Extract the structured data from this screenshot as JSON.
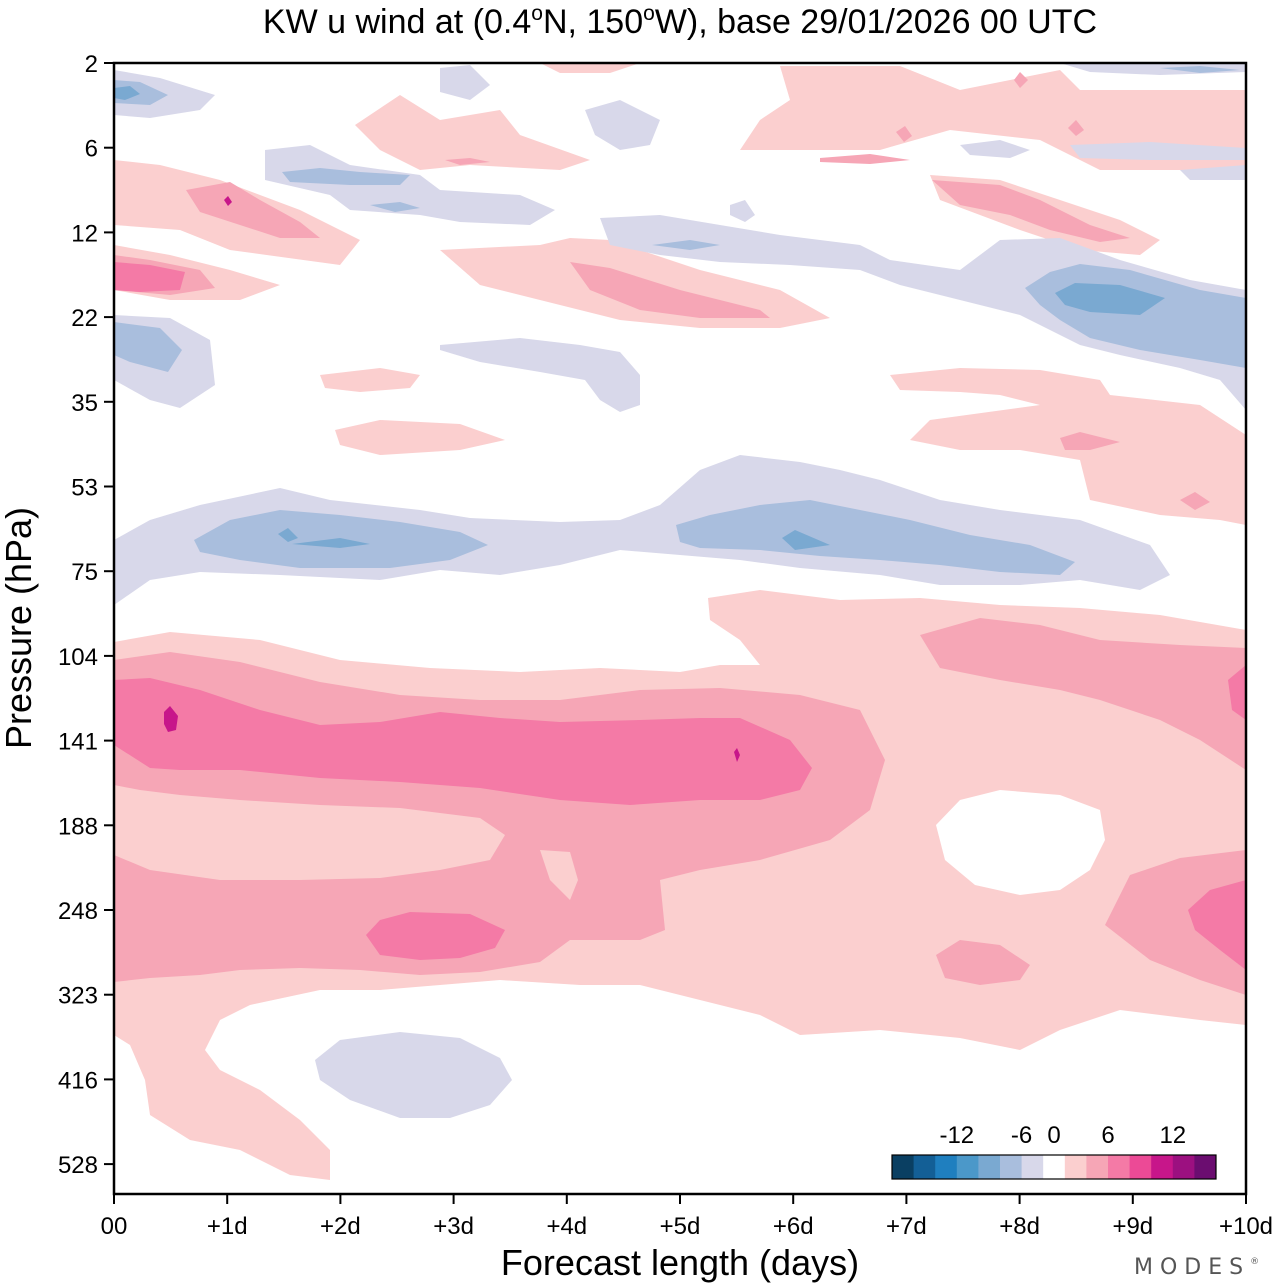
{
  "chart_data": {
    "type": "contour",
    "title_parts": {
      "pre": "KW u wind at (0.4",
      "deg1": "o",
      "mid": "N, 150",
      "deg2": "o",
      "post": "W),  base 29/01/2026  00 UTC"
    },
    "xlabel": "Forecast length (days)",
    "ylabel": "Pressure (hPa)",
    "x_ticks": [
      "00",
      "+1d",
      "+2d",
      "+3d",
      "+4d",
      "+5d",
      "+6d",
      "+7d",
      "+8d",
      "+9d",
      "+10d"
    ],
    "y_ticks": [
      "2",
      "6",
      "12",
      "22",
      "35",
      "53",
      "75",
      "104",
      "141",
      "188",
      "248",
      "323",
      "416",
      "528"
    ],
    "xlim_days": [
      0,
      10
    ],
    "colorbar": {
      "tick_labels": [
        "-12",
        "-6",
        "0",
        "6",
        "12"
      ],
      "tick_bin_positions": [
        3,
        6,
        8,
        10,
        13
      ],
      "levels_ms": [
        -16,
        -14,
        -12,
        -10,
        -8,
        -6,
        -4,
        -2,
        2,
        4,
        6,
        8,
        10,
        12,
        14,
        16
      ],
      "colors": [
        "#0a3f62",
        "#135f96",
        "#1f7fbf",
        "#4b98c9",
        "#7aa9d1",
        "#a9bedd",
        "#d8d8ea",
        "#ffffff",
        "#fbcfcf",
        "#f6a6b6",
        "#f47aa6",
        "#ec4a96",
        "#c7168a",
        "#9c1080",
        "#6b0d70"
      ]
    },
    "features": [
      {
        "name": "upper-neg-1",
        "day": [
          0.0,
          0.8
        ],
        "p": [
          3,
          4
        ],
        "u": -4
      },
      {
        "name": "upper-pos-1",
        "day": [
          0.0,
          1.8
        ],
        "p": [
          8,
          12
        ],
        "u": 4
      },
      {
        "name": "upper-pos-2",
        "day": [
          0.0,
          1.5
        ],
        "p": [
          14,
          18
        ],
        "u": 8
      },
      {
        "name": "upper-neg-2",
        "day": [
          0.0,
          0.9
        ],
        "p": [
          24,
          30
        ],
        "u": -4
      },
      {
        "name": "upper-pos-3",
        "day": [
          4.0,
          6.5
        ],
        "p": [
          16,
          22
        ],
        "u": 4
      },
      {
        "name": "upper-neg-3",
        "day": [
          8.0,
          10.0
        ],
        "p": [
          16,
          28
        ],
        "u": -8
      },
      {
        "name": "strat-neg-1",
        "day": [
          0.5,
          3.5
        ],
        "p": [
          60,
          72
        ],
        "u": -6
      },
      {
        "name": "strat-neg-2",
        "day": [
          5.0,
          8.5
        ],
        "p": [
          58,
          72
        ],
        "u": -6
      },
      {
        "name": "jet-pos-1",
        "day": [
          0.0,
          6.5
        ],
        "p": [
          120,
          160
        ],
        "u": 10
      },
      {
        "name": "jet-pos-2",
        "day": [
          9.5,
          10.0
        ],
        "p": [
          110,
          140
        ],
        "u": 10
      },
      {
        "name": "low-pos-1",
        "day": [
          2.3,
          3.5
        ],
        "p": [
          240,
          270
        ],
        "u": 8
      },
      {
        "name": "low-pos-2",
        "day": [
          9.5,
          10.0
        ],
        "p": [
          230,
          280
        ],
        "u": 8
      },
      {
        "name": "mid-neg-1",
        "day": [
          1.8,
          3.5
        ],
        "p": [
          380,
          470
        ],
        "u": -2
      },
      {
        "name": "core-pos-1",
        "day": [
          6.9,
          8.6
        ],
        "p": [
          175,
          215
        ],
        "u": 0
      }
    ]
  },
  "logo_text": "MODES",
  "logo_mark": "®"
}
